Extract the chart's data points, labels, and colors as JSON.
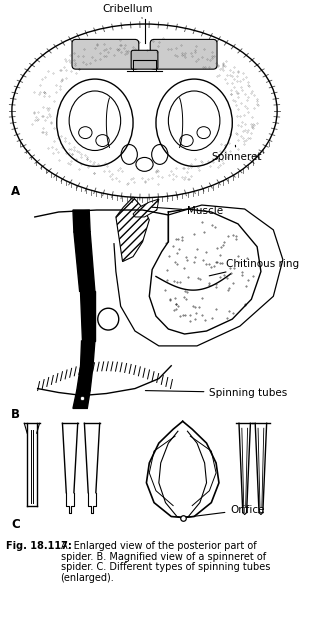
{
  "caption_bold": "Fig. 18.117:",
  "caption_lines": [
    "A. Enlarged view of the posterior part of",
    "spider. B. Magnified view of a spinneret of",
    "spider. C. Different types of spinning tubes",
    "(enlarged)."
  ],
  "label_A": "A",
  "label_B": "B",
  "label_C": "C",
  "label_Cribellum": "Cribellum",
  "label_Spinneret": "Spinneret",
  "label_Muscle": "Muscle",
  "label_ChitinousRing": "Chitinous ring",
  "label_SpinningTubes": "Spinning tubes",
  "label_Orifice": "Orifice",
  "bg_color": "#ffffff",
  "line_color": "#000000",
  "font_size_label": 7.5,
  "font_size_caption": 7.0,
  "font_size_letter": 8.5
}
